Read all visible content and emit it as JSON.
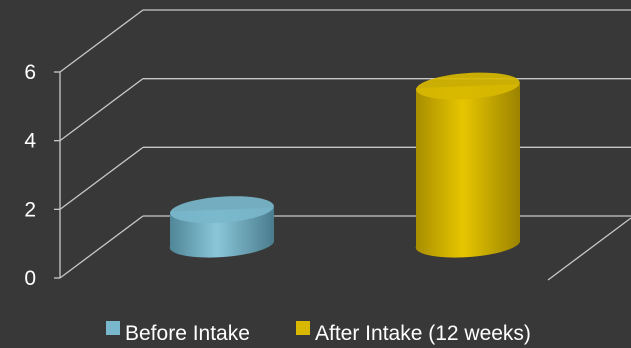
{
  "chart_data": {
    "type": "bar",
    "style": "3d-cylinder",
    "title": "",
    "xlabel": "",
    "ylabel": "",
    "ylim": [
      0,
      6
    ],
    "yticks": [
      "0",
      "2",
      "4",
      "6"
    ],
    "grid": true,
    "legend_position": "bottom",
    "categories": [
      ""
    ],
    "series": [
      {
        "name": "Before Intake",
        "values": [
          1
        ],
        "color": "#79b7cc"
      },
      {
        "name": "After Intake (12 weeks)",
        "values": [
          4.6
        ],
        "color": "#d8b800"
      }
    ]
  }
}
